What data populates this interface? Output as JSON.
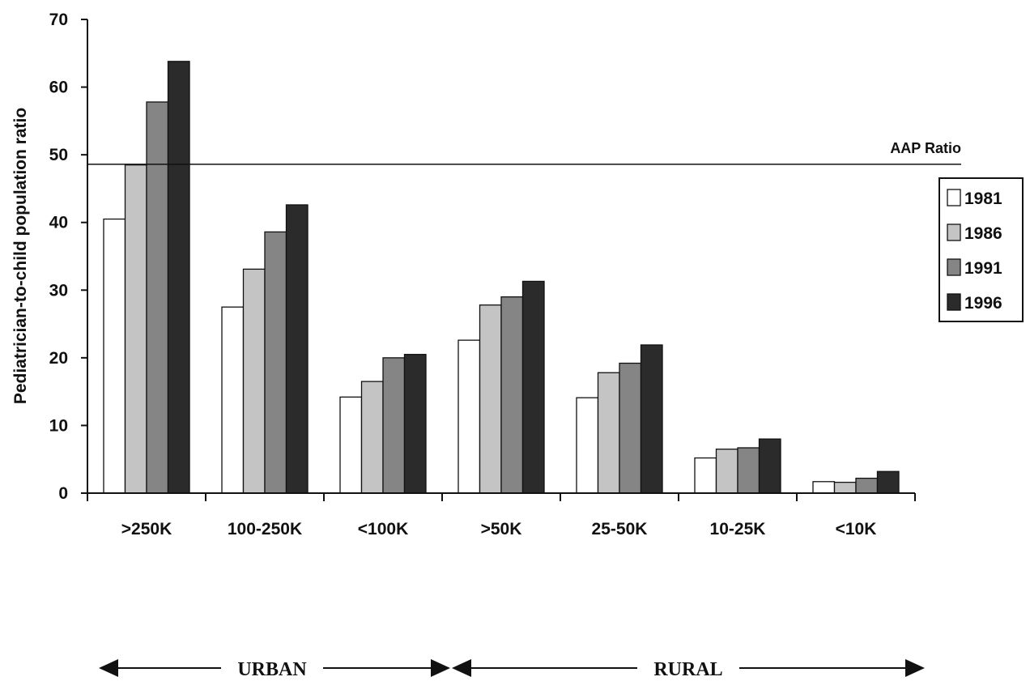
{
  "chart_data": {
    "type": "bar",
    "title": "",
    "xlabel": "",
    "ylabel": "Pediatrician-to-child population ratio",
    "ylim": [
      0,
      70
    ],
    "yticks": [
      0,
      10,
      20,
      30,
      40,
      50,
      60,
      70
    ],
    "categories": [
      ">250K",
      "100-250K",
      "<100K",
      ">50K",
      "25-50K",
      "10-25K",
      "<10K"
    ],
    "series": [
      {
        "name": "1981",
        "color": "#ffffff",
        "values": [
          40.5,
          27.5,
          14.2,
          22.6,
          14.1,
          5.2,
          1.7
        ]
      },
      {
        "name": "1986",
        "color": "#c4c4c4",
        "values": [
          48.5,
          33.1,
          16.5,
          27.8,
          17.8,
          6.5,
          1.6
        ]
      },
      {
        "name": "1991",
        "color": "#858585",
        "values": [
          57.8,
          38.6,
          20.0,
          29.0,
          19.2,
          6.7,
          2.2
        ]
      },
      {
        "name": "1996",
        "color": "#2b2b2b",
        "values": [
          63.8,
          42.6,
          20.5,
          31.3,
          21.9,
          8.0,
          3.2
        ]
      }
    ],
    "reference_line": {
      "label": "AAP Ratio",
      "value": 48.6
    },
    "legend_position": "right",
    "grid": false,
    "groups": [
      {
        "label": "URBAN",
        "categories": [
          ">250K",
          "100-250K",
          "<100K"
        ]
      },
      {
        "label": "RURAL",
        "categories": [
          ">50K",
          "25-50K",
          "10-25K",
          "<10K"
        ]
      }
    ]
  }
}
